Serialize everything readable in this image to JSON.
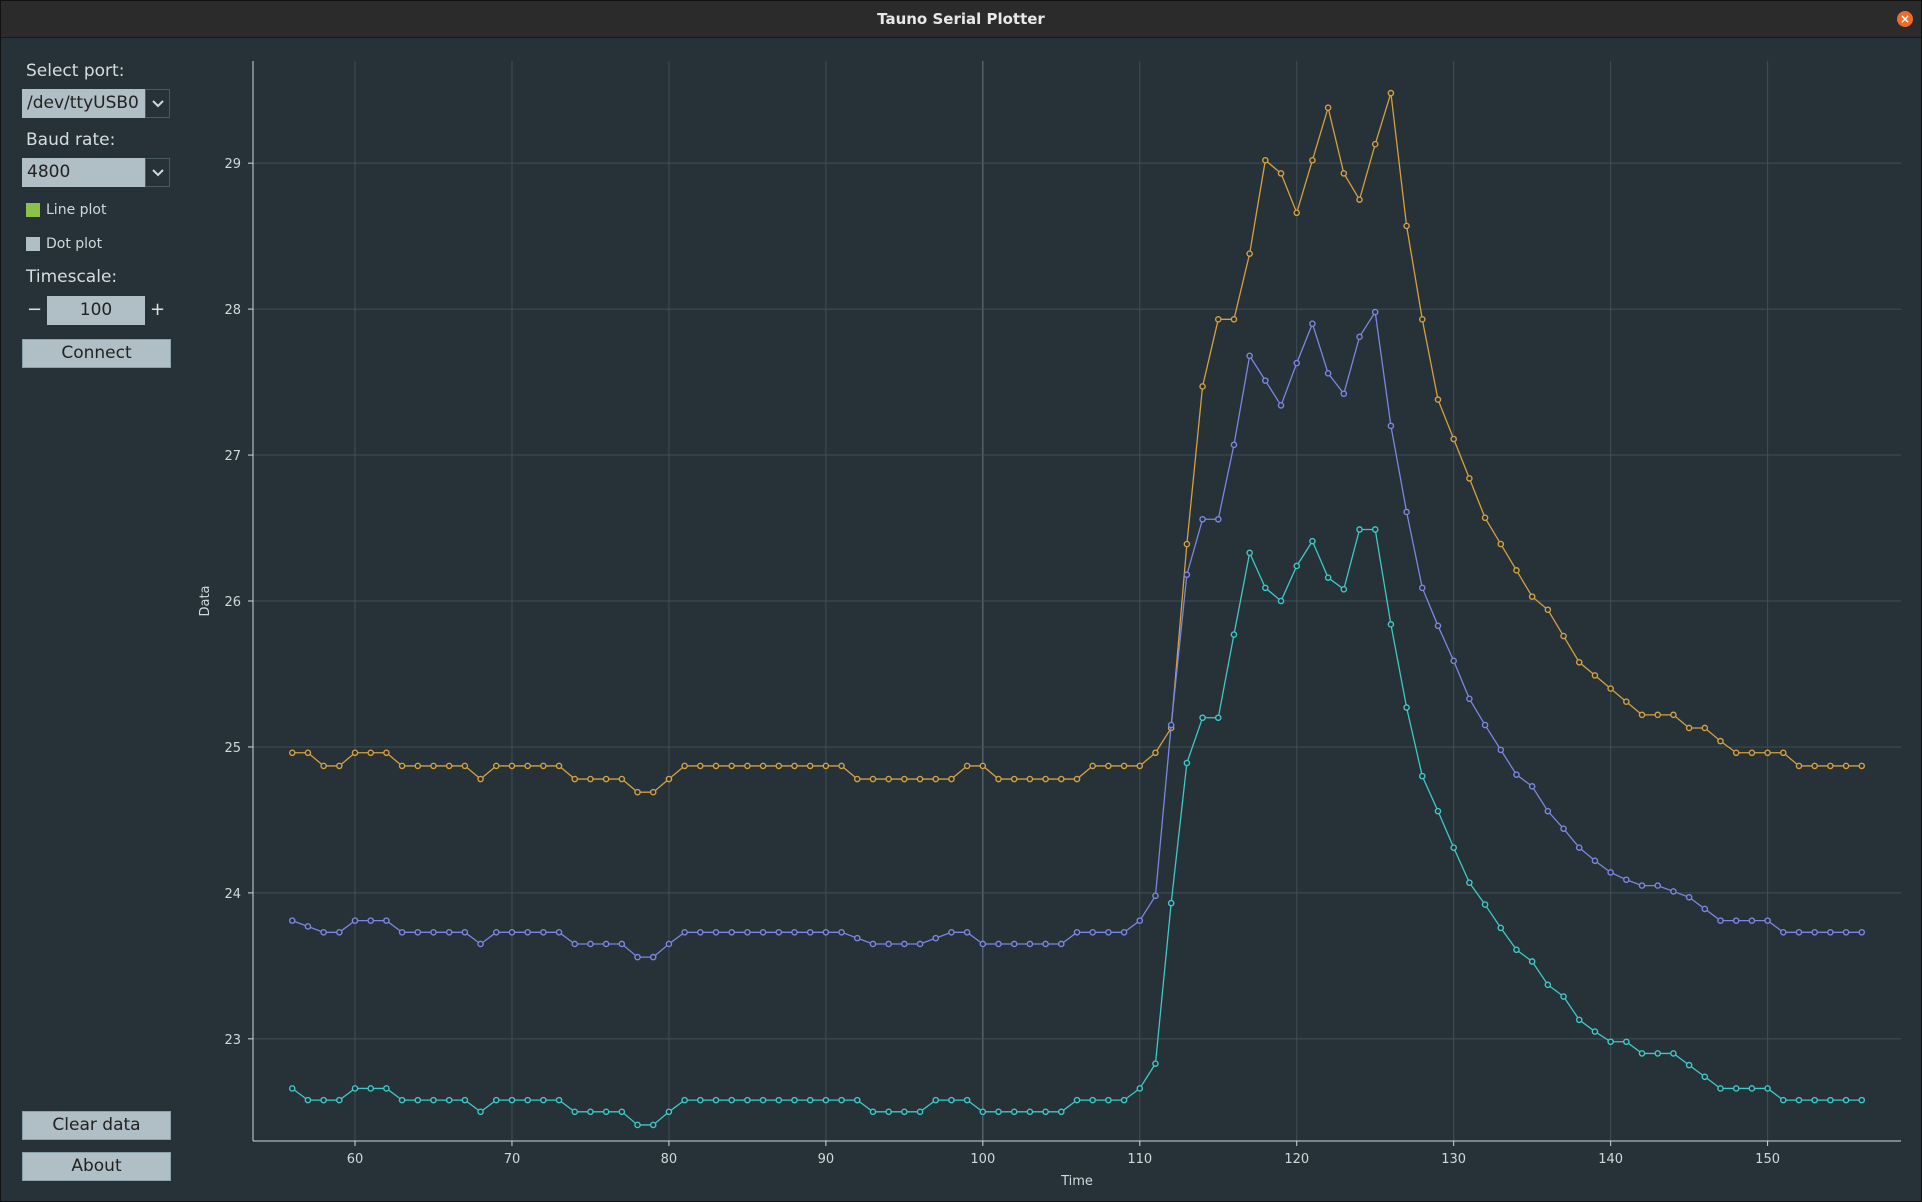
{
  "window": {
    "title": "Tauno Serial Plotter",
    "close_symbol": "×"
  },
  "sidebar": {
    "port_label": "Select port:",
    "port_value": "/dev/ttyUSB0",
    "baud_label": "Baud rate:",
    "baud_value": "4800",
    "line_plot_label": "Line plot",
    "line_plot_checked": true,
    "dot_plot_label": "Dot plot",
    "dot_plot_checked": false,
    "timescale_label": "Timescale:",
    "timescale_value": "100",
    "minus_label": "−",
    "plus_label": "+",
    "connect_label": "Connect",
    "clear_label": "Clear data",
    "about_label": "About"
  },
  "chart_data": {
    "type": "line",
    "xlabel": "Time",
    "ylabel": "Data",
    "xlim": [
      53.5,
      158.5
    ],
    "ylim": [
      22.3,
      29.7
    ],
    "xticks": [
      60,
      70,
      80,
      90,
      100,
      110,
      120,
      130,
      140,
      150
    ],
    "yticks": [
      23,
      24,
      25,
      26,
      27,
      28,
      29
    ],
    "grid": true,
    "x_start": 56,
    "series": [
      {
        "color": "#d4a040",
        "values": [
          24.96,
          24.96,
          24.87,
          24.87,
          24.96,
          24.96,
          24.96,
          24.87,
          24.87,
          24.87,
          24.87,
          24.87,
          24.78,
          24.87,
          24.87,
          24.87,
          24.87,
          24.87,
          24.78,
          24.78,
          24.78,
          24.78,
          24.69,
          24.69,
          24.78,
          24.87,
          24.87,
          24.87,
          24.87,
          24.87,
          24.87,
          24.87,
          24.87,
          24.87,
          24.87,
          24.87,
          24.78,
          24.78,
          24.78,
          24.78,
          24.78,
          24.78,
          24.78,
          24.87,
          24.87,
          24.78,
          24.78,
          24.78,
          24.78,
          24.78,
          24.78,
          24.87,
          24.87,
          24.87,
          24.87,
          24.96,
          25.13,
          26.39,
          27.47,
          27.93,
          27.93,
          28.38,
          29.02,
          28.93,
          28.66,
          29.02,
          29.38,
          28.93,
          28.75,
          29.13,
          29.48,
          28.57,
          27.93,
          27.38,
          27.11,
          26.84,
          26.57,
          26.39,
          26.21,
          26.03,
          25.94,
          25.76,
          25.58,
          25.49,
          25.4,
          25.31,
          25.22,
          25.22,
          25.22,
          25.13,
          25.13,
          25.04,
          24.96,
          24.96,
          24.96,
          24.96,
          24.87,
          24.87,
          24.87,
          24.87,
          24.87
        ]
      },
      {
        "color": "#7b86e0",
        "values": [
          23.81,
          23.77,
          23.73,
          23.73,
          23.81,
          23.81,
          23.81,
          23.73,
          23.73,
          23.73,
          23.73,
          23.73,
          23.65,
          23.73,
          23.73,
          23.73,
          23.73,
          23.73,
          23.65,
          23.65,
          23.65,
          23.65,
          23.56,
          23.56,
          23.65,
          23.73,
          23.73,
          23.73,
          23.73,
          23.73,
          23.73,
          23.73,
          23.73,
          23.73,
          23.73,
          23.73,
          23.69,
          23.65,
          23.65,
          23.65,
          23.65,
          23.69,
          23.73,
          23.73,
          23.65,
          23.65,
          23.65,
          23.65,
          23.65,
          23.65,
          23.73,
          23.73,
          23.73,
          23.73,
          23.81,
          23.98,
          25.15,
          26.18,
          26.56,
          26.56,
          27.07,
          27.68,
          27.51,
          27.34,
          27.63,
          27.9,
          27.56,
          27.42,
          27.81,
          27.98,
          27.2,
          26.61,
          26.09,
          25.83,
          25.59,
          25.33,
          25.15,
          24.98,
          24.81,
          24.73,
          24.56,
          24.44,
          24.31,
          24.22,
          24.14,
          24.09,
          24.05,
          24.05,
          24.01,
          23.97,
          23.89,
          23.81,
          23.81,
          23.81,
          23.81,
          23.73,
          23.73,
          23.73,
          23.73,
          23.73,
          23.73
        ]
      },
      {
        "color": "#3fc8c8",
        "values": [
          22.66,
          22.58,
          22.58,
          22.58,
          22.66,
          22.66,
          22.66,
          22.58,
          22.58,
          22.58,
          22.58,
          22.58,
          22.5,
          22.58,
          22.58,
          22.58,
          22.58,
          22.58,
          22.5,
          22.5,
          22.5,
          22.5,
          22.41,
          22.41,
          22.5,
          22.58,
          22.58,
          22.58,
          22.58,
          22.58,
          22.58,
          22.58,
          22.58,
          22.58,
          22.58,
          22.58,
          22.58,
          22.5,
          22.5,
          22.5,
          22.5,
          22.58,
          22.58,
          22.58,
          22.5,
          22.5,
          22.5,
          22.5,
          22.5,
          22.5,
          22.58,
          22.58,
          22.58,
          22.58,
          22.66,
          22.83,
          23.93,
          24.89,
          25.2,
          25.2,
          25.77,
          26.33,
          26.09,
          26.0,
          26.24,
          26.41,
          26.16,
          26.08,
          26.49,
          26.49,
          25.84,
          25.27,
          24.8,
          24.56,
          24.31,
          24.07,
          23.92,
          23.76,
          23.61,
          23.53,
          23.37,
          23.29,
          23.13,
          23.05,
          22.98,
          22.98,
          22.9,
          22.9,
          22.9,
          22.82,
          22.74,
          22.66,
          22.66,
          22.66,
          22.66,
          22.58,
          22.58,
          22.58,
          22.58,
          22.58,
          22.58
        ]
      }
    ]
  }
}
